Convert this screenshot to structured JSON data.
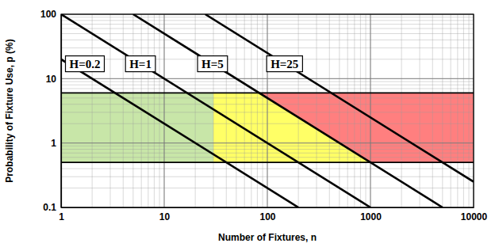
{
  "chart_data": {
    "type": "line",
    "x_label": "Number of Fixtures, n",
    "y_label": "Probability of Fixture Use, p (%)",
    "log": true,
    "grid": true,
    "xlim": [
      1,
      10000
    ],
    "ylim": [
      0.1,
      100
    ],
    "xticks": [
      1,
      10,
      100,
      1000,
      10000
    ],
    "yticks": [
      0.1,
      1,
      10,
      100
    ],
    "series": [
      {
        "name": "H=0.2",
        "color": "#000000",
        "x": [
          1,
          200
        ],
        "values": [
          20,
          0.1
        ]
      },
      {
        "name": "H=1",
        "color": "#000000",
        "x": [
          1,
          1000
        ],
        "values": [
          100,
          0.1
        ]
      },
      {
        "name": "H=5",
        "color": "#000000",
        "x": [
          5,
          5000
        ],
        "values": [
          100,
          0.1
        ]
      },
      {
        "name": "H=25",
        "color": "#000000",
        "x": [
          25,
          10000
        ],
        "values": [
          100,
          0.25
        ]
      }
    ],
    "regions": [
      {
        "color": "#c8e6a8",
        "x": [
          1,
          30,
          30,
          1
        ],
        "values": [
          0.5,
          0.5,
          6,
          6
        ]
      },
      {
        "color": "#ffff66",
        "x": [
          30,
          1000,
          83,
          30
        ],
        "values": [
          0.5,
          0.5,
          6,
          6
        ]
      },
      {
        "color": "#ff7f7f",
        "x": [
          1000,
          10000,
          10000,
          83
        ],
        "values": [
          0.5,
          0.5,
          6,
          6
        ]
      }
    ]
  }
}
